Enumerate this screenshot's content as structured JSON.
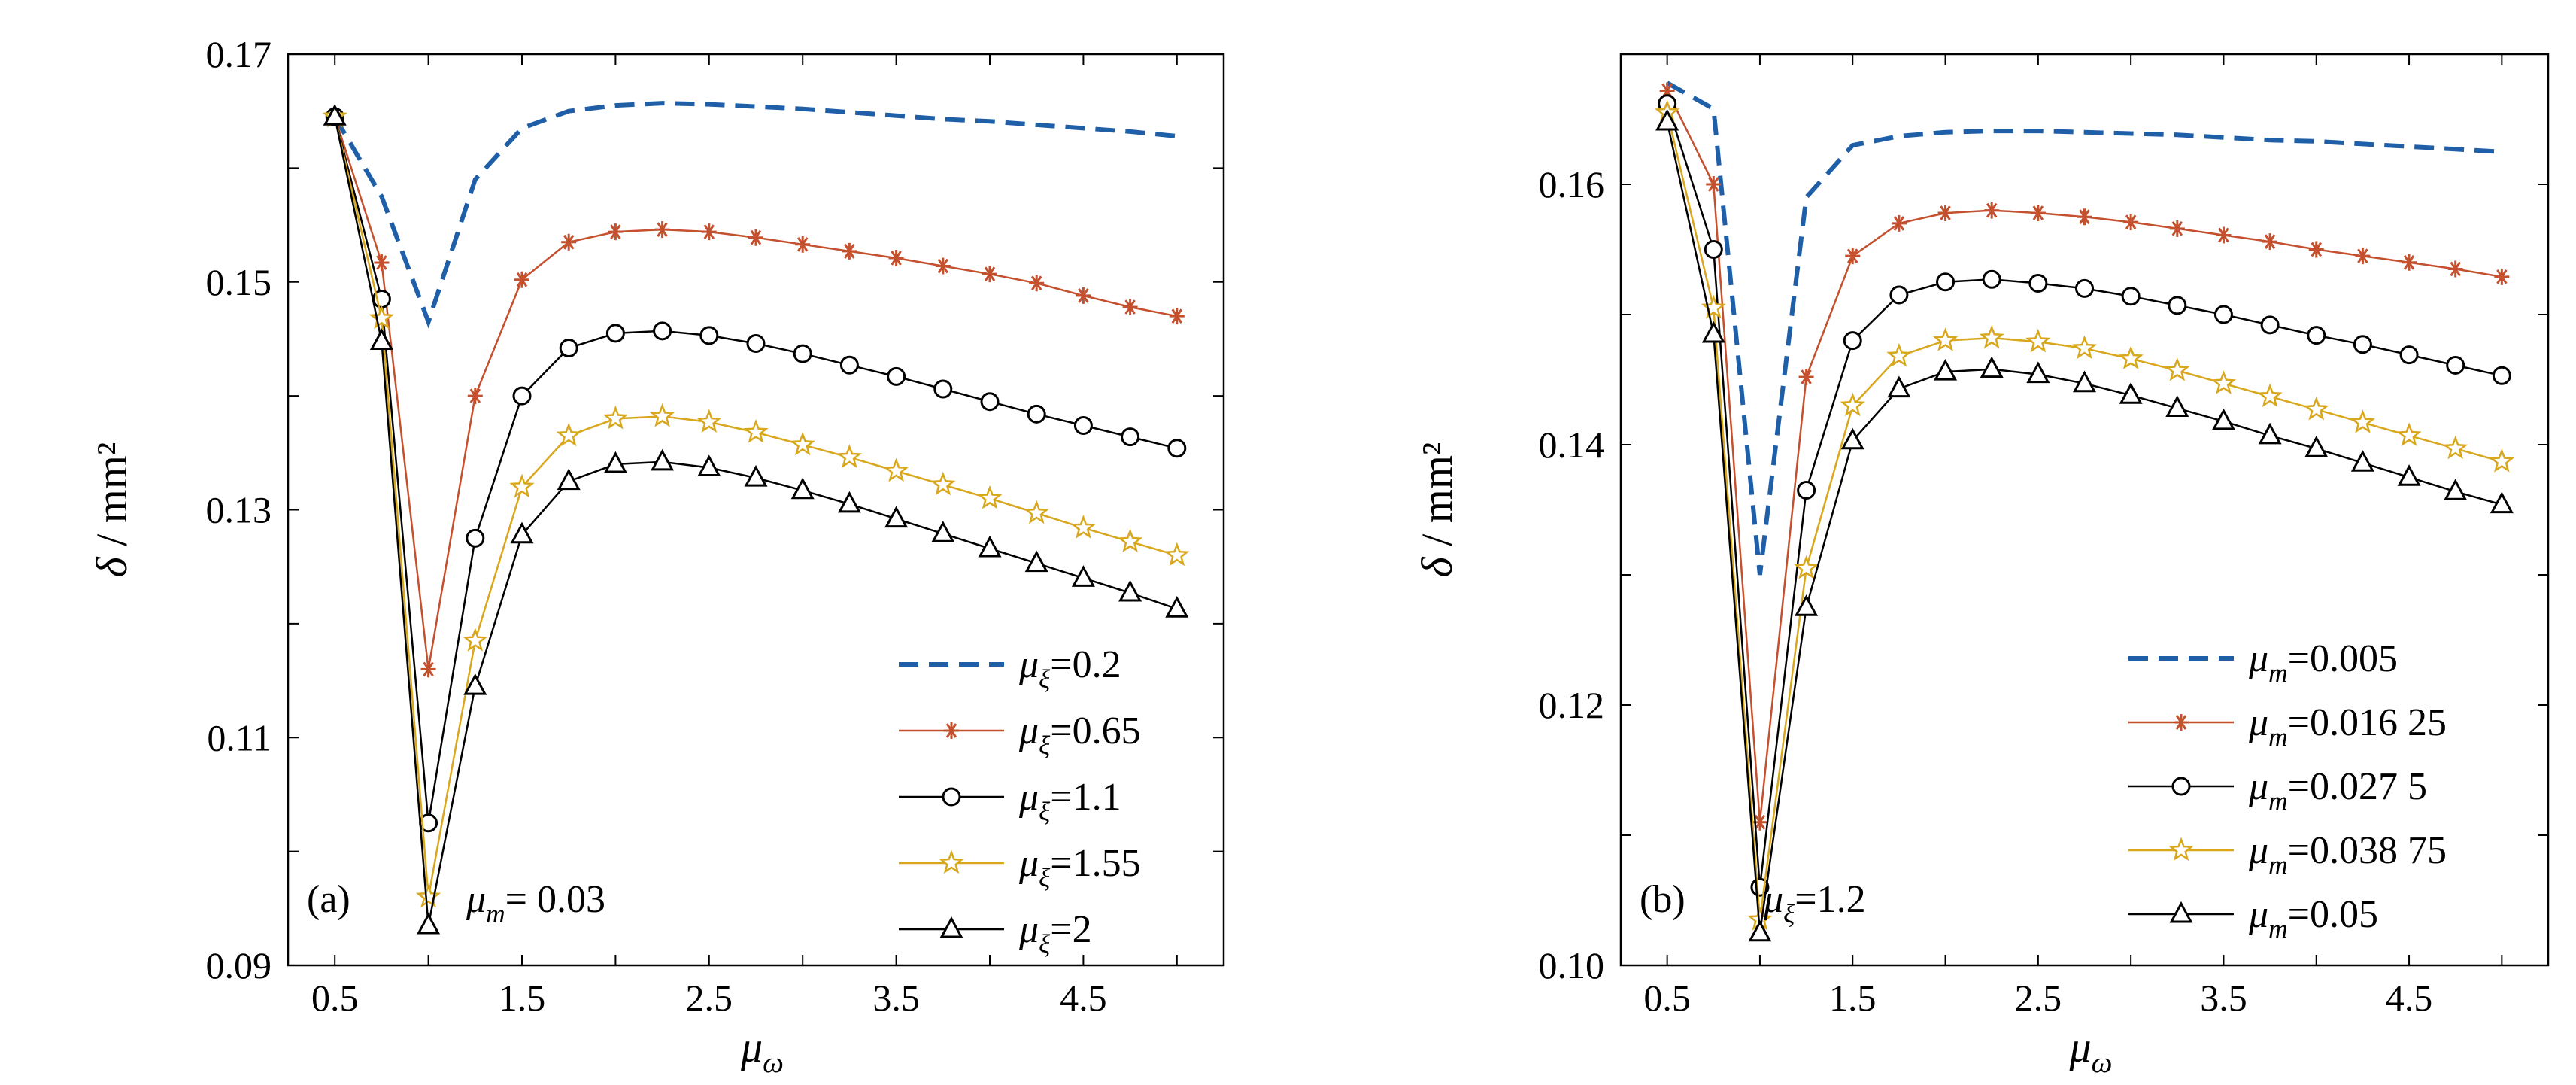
{
  "chart_data": [
    {
      "type": "line",
      "panel_label": "(a)",
      "annotation": "μm= 0.03",
      "xlabel": "μω",
      "ylabel": "δ / mm²",
      "xlim": [
        0.25,
        5.25
      ],
      "ylim": [
        0.09,
        0.17
      ],
      "xticks": [
        "0.5",
        "1.5",
        "2.5",
        "3.5",
        "4.5"
      ],
      "yticks": [
        "0.09",
        "0.11",
        "0.13",
        "0.15",
        "0.17"
      ],
      "grid": false,
      "legend_position": "bottom-right",
      "x": [
        0.5,
        0.75,
        1.0,
        1.25,
        1.5,
        1.75,
        2.0,
        2.25,
        2.5,
        2.75,
        3.0,
        3.25,
        3.5,
        3.75,
        4.0,
        4.25,
        4.5,
        4.75,
        5.0
      ],
      "series": [
        {
          "name": "μξ=0.2",
          "style": "dashed",
          "marker": "none",
          "color": "#1f5fa8",
          "values": [
            0.1645,
            0.1575,
            0.1465,
            0.159,
            0.1635,
            0.165,
            0.1655,
            0.1657,
            0.1656,
            0.1654,
            0.1652,
            0.1649,
            0.1646,
            0.1643,
            0.1641,
            0.1638,
            0.1635,
            0.1632,
            0.1628
          ]
        },
        {
          "name": "μξ=0.65",
          "style": "solid",
          "marker": "asterisk",
          "color": "#c4502e",
          "values": [
            0.1645,
            0.1517,
            0.116,
            0.14,
            0.1502,
            0.1535,
            0.1544,
            0.1546,
            0.1544,
            0.1539,
            0.1533,
            0.1527,
            0.1521,
            0.1514,
            0.1507,
            0.1499,
            0.1488,
            0.1478,
            0.147
          ]
        },
        {
          "name": "μξ=1.1",
          "style": "solid",
          "marker": "circle",
          "color": "#000000",
          "values": [
            0.1645,
            0.1485,
            0.1025,
            0.1275,
            0.14,
            0.1442,
            0.1455,
            0.1457,
            0.1453,
            0.1446,
            0.1437,
            0.1427,
            0.1417,
            0.1406,
            0.1395,
            0.1384,
            0.1374,
            0.1364,
            0.1354
          ]
        },
        {
          "name": "μξ=1.55",
          "style": "solid",
          "marker": "star",
          "color": "#d9a71c",
          "values": [
            0.1645,
            0.1468,
            0.096,
            0.1185,
            0.132,
            0.1365,
            0.138,
            0.1382,
            0.1377,
            0.1368,
            0.1357,
            0.1346,
            0.1334,
            0.1322,
            0.131,
            0.1297,
            0.1284,
            0.1272,
            0.126
          ]
        },
        {
          "name": "μξ=2",
          "style": "solid",
          "marker": "triangle",
          "color": "#000000",
          "values": [
            0.1645,
            0.1448,
            0.0935,
            0.1145,
            0.1278,
            0.1325,
            0.134,
            0.1342,
            0.1337,
            0.1328,
            0.1317,
            0.1305,
            0.1292,
            0.1279,
            0.1266,
            0.1253,
            0.124,
            0.1227,
            0.1213
          ]
        }
      ]
    },
    {
      "type": "line",
      "panel_label": "(b)",
      "annotation": "μξ=1.2",
      "xlabel": "μω",
      "ylabel": "δ / mm²",
      "xlim": [
        0.25,
        5.25
      ],
      "ylim": [
        0.1,
        0.17
      ],
      "xticks": [
        "0.5",
        "1.5",
        "2.5",
        "3.5",
        "4.5"
      ],
      "yticks": [
        "0.10",
        "0.12",
        "0.14",
        "0.16"
      ],
      "grid": false,
      "legend_position": "bottom-right",
      "x": [
        0.5,
        0.75,
        1.0,
        1.25,
        1.5,
        1.75,
        2.0,
        2.25,
        2.5,
        2.75,
        3.0,
        3.25,
        3.5,
        3.75,
        4.0,
        4.25,
        4.5,
        4.75,
        5.0
      ],
      "series": [
        {
          "name": "μm=0.005",
          "style": "dashed",
          "marker": "none",
          "color": "#1f5fa8",
          "x": [
            0.5,
            0.75,
            1.0,
            1.25,
            1.5,
            1.75,
            2.0,
            2.25,
            2.5,
            2.75,
            3.0,
            3.25,
            3.5,
            3.75,
            4.0,
            4.25,
            4.5,
            4.75,
            5.0
          ],
          "values": [
            0.1678,
            0.1658,
            0.13,
            0.159,
            0.163,
            0.1637,
            0.164,
            0.1641,
            0.1641,
            0.164,
            0.1639,
            0.1638,
            0.1636,
            0.1634,
            0.1633,
            0.1631,
            0.1629,
            0.1627,
            0.1625
          ]
        },
        {
          "name": "μm=0.016 25",
          "style": "solid",
          "marker": "asterisk",
          "color": "#c4502e",
          "values": [
            0.1672,
            0.16,
            0.111,
            0.1452,
            0.1545,
            0.157,
            0.1578,
            0.158,
            0.1578,
            0.1575,
            0.1571,
            0.1566,
            0.1561,
            0.1556,
            0.155,
            0.1545,
            0.154,
            0.1535,
            0.1529
          ]
        },
        {
          "name": "μm=0.027 5",
          "style": "solid",
          "marker": "circle",
          "color": "#000000",
          "values": [
            0.1662,
            0.155,
            0.106,
            0.1365,
            0.148,
            0.1515,
            0.1525,
            0.1527,
            0.1524,
            0.152,
            0.1514,
            0.1507,
            0.15,
            0.1492,
            0.1484,
            0.1477,
            0.1469,
            0.1461,
            0.1453
          ]
        },
        {
          "name": "μm=0.038 75",
          "style": "solid",
          "marker": "star",
          "color": "#d9a71c",
          "values": [
            0.1655,
            0.1505,
            0.1035,
            0.1305,
            0.143,
            0.1468,
            0.148,
            0.1482,
            0.1479,
            0.1474,
            0.1466,
            0.1457,
            0.1447,
            0.1437,
            0.1427,
            0.1417,
            0.1407,
            0.1397,
            0.1387
          ]
        },
        {
          "name": "μm=0.05",
          "style": "solid",
          "marker": "triangle",
          "color": "#000000",
          "values": [
            0.1648,
            0.1485,
            0.1025,
            0.1275,
            0.1403,
            0.1443,
            0.1456,
            0.1458,
            0.1454,
            0.1447,
            0.1438,
            0.1428,
            0.1418,
            0.1407,
            0.1397,
            0.1386,
            0.1375,
            0.1364,
            0.1354
          ]
        }
      ]
    }
  ]
}
